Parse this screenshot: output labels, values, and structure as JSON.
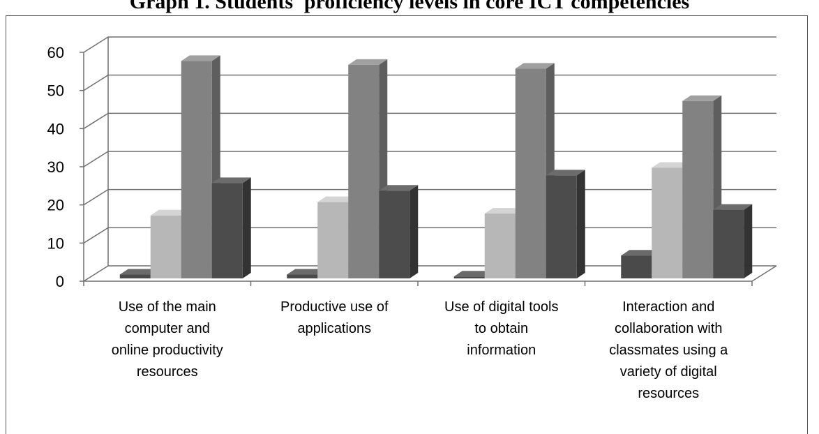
{
  "chart_data": {
    "type": "bar",
    "title": "Graph 1. Students' proficiency levels in core ICT competencies",
    "categories": [
      [
        "Use of the main",
        "computer and",
        "online productivity",
        "resources"
      ],
      [
        "Productive use of",
        "applications"
      ],
      [
        "Use of digital tools",
        "to obtain",
        "information"
      ],
      [
        "Interaction and",
        "collaboration with",
        "classmates using a",
        "variety of digital",
        "resources"
      ]
    ],
    "series": [
      {
        "values": [
          1,
          1,
          0.5,
          6
        ]
      },
      {
        "values": [
          16.5,
          20,
          17,
          29
        ]
      },
      {
        "values": [
          57,
          56,
          55,
          46.5
        ]
      },
      {
        "values": [
          25,
          23,
          27,
          18
        ]
      }
    ],
    "ylim": [
      0,
      60
    ],
    "yticks": [
      0,
      10,
      20,
      30,
      40,
      50,
      60
    ],
    "grid": true,
    "colors": {
      "series": [
        "#4a4a4a",
        "#b7b7b7",
        "#828282",
        "#4c4c4c"
      ],
      "series_side": [
        "#2e2e2e",
        "#8a8a8a",
        "#5e5e5e",
        "#333333"
      ],
      "series_top": [
        "#6a6a6a",
        "#d4d4d4",
        "#a0a0a0",
        "#6c6c6c"
      ],
      "grid": "#6f6f6f"
    }
  }
}
